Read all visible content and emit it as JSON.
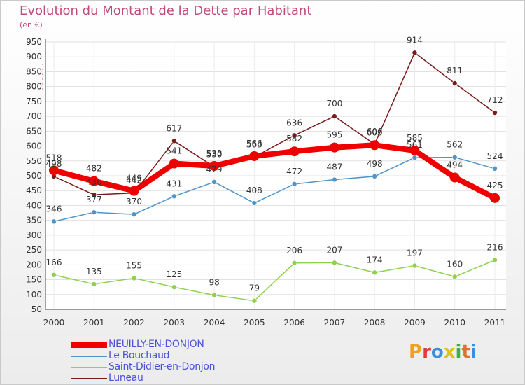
{
  "chart_data": {
    "type": "line",
    "title": "Evolution du Montant de la Dette par Habitant",
    "subtitle": "(en €)",
    "x": [
      "2000",
      "2001",
      "2002",
      "2003",
      "2004",
      "2005",
      "2006",
      "2007",
      "2008",
      "2009",
      "2010",
      "2011"
    ],
    "ylim": [
      50,
      950
    ],
    "yticks": [
      50,
      100,
      150,
      200,
      250,
      300,
      350,
      400,
      450,
      500,
      550,
      600,
      650,
      700,
      750,
      800,
      850,
      900,
      950
    ],
    "grid": true,
    "legend_position": "bottom-left",
    "series": [
      {
        "name": "NEUILLY-EN-DONJON",
        "color": "#ee0000",
        "values": [
          518,
          482,
          449,
          541,
          533,
          566,
          582,
          595,
          603,
          585,
          494,
          425
        ],
        "labels": [
          "518",
          "482",
          "449",
          "541",
          "533",
          "566",
          "582",
          "595",
          "603",
          "585",
          "494",
          "425"
        ]
      },
      {
        "name": "Le Bouchaud",
        "color": "#4e95c9",
        "values": [
          346,
          377,
          370,
          431,
          479,
          408,
          472,
          487,
          498,
          561,
          562,
          524
        ],
        "labels": [
          "346",
          "377",
          "370",
          "431",
          "479",
          "408",
          "472",
          "487",
          "498",
          "561",
          "562",
          "524"
        ]
      },
      {
        "name": "Saint-Didier-en-Donjon",
        "color": "#8fd14f",
        "values": [
          166,
          135,
          155,
          125,
          98,
          79,
          206,
          207,
          174,
          197,
          160,
          216
        ],
        "labels": [
          "166",
          "135",
          "155",
          "125",
          "98",
          "79",
          "206",
          "207",
          "174",
          "197",
          "160",
          "216"
        ]
      },
      {
        "name": "Luneau",
        "color": "#7a1a1a",
        "values": [
          498,
          436,
          442,
          617,
          530,
          563,
          636,
          700,
          606,
          914,
          811,
          712
        ],
        "labels": [
          "498",
          "436",
          "442",
          "617",
          "530",
          "563",
          "636",
          "700",
          "606",
          "914",
          "811",
          "712"
        ]
      }
    ]
  },
  "brand": {
    "letters": [
      "P",
      "r",
      "o",
      "x",
      "i",
      "t",
      "i"
    ],
    "colors": [
      "#f0a020",
      "#e03a3a",
      "#3a8fd8",
      "#e0c020",
      "#3ab04a",
      "#e07030",
      "#3a8fd8"
    ]
  }
}
